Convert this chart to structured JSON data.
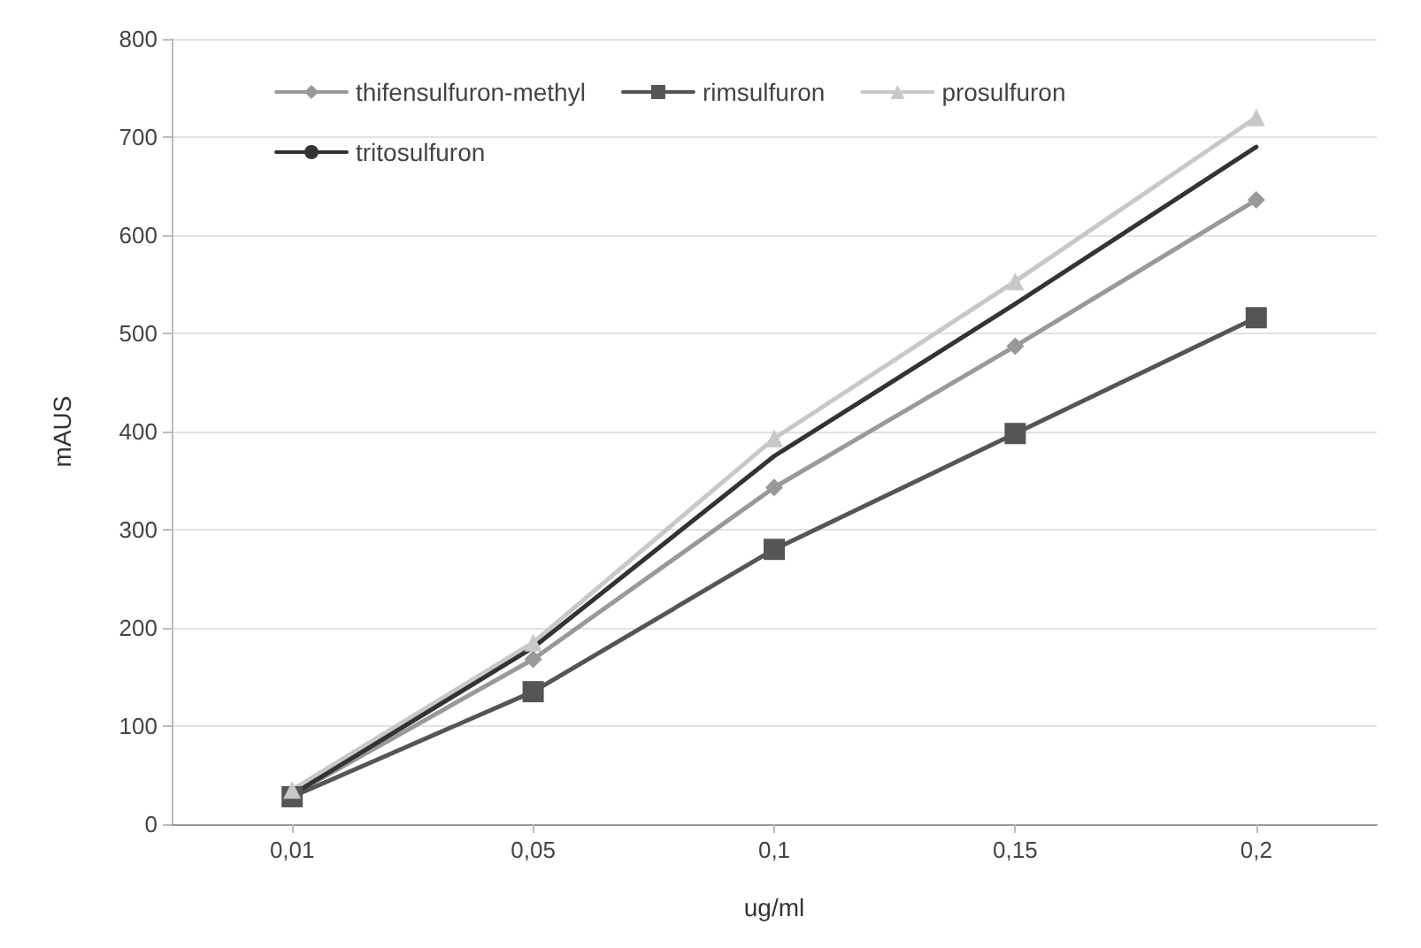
{
  "chart_data": {
    "type": "line",
    "xlabel": "ug/ml",
    "ylabel": "mAUS",
    "categories": [
      "0,01",
      "0,05",
      "0,1",
      "0,15",
      "0,2"
    ],
    "ylim": [
      0,
      800
    ],
    "yticks": [
      0,
      100,
      200,
      300,
      400,
      500,
      600,
      700,
      800
    ],
    "grid": "y",
    "legend": "top left",
    "series": [
      {
        "name": "thifensulfuron-methyl",
        "color": "#999999",
        "marker": "diamond",
        "values": [
          30,
          168,
          343,
          487,
          636
        ]
      },
      {
        "name": "rimsulfuron",
        "color": "#555555",
        "marker": "square",
        "values": [
          28,
          135,
          280,
          398,
          516
        ]
      },
      {
        "name": "prosulfuron",
        "color": "#c8c8c8",
        "marker": "triangle",
        "values": [
          35,
          185,
          393,
          553,
          720
        ]
      },
      {
        "name": "tritosulfuron",
        "color": "#333333",
        "marker": "none",
        "values": [
          30,
          180,
          375,
          530,
          690
        ]
      }
    ]
  }
}
